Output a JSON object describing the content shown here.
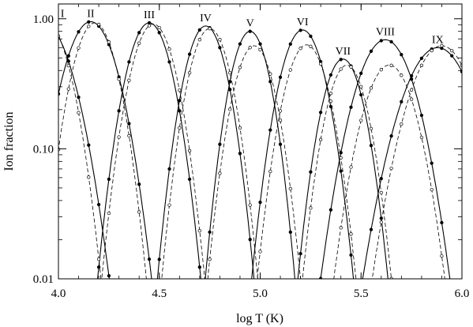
{
  "chart_data": {
    "type": "line",
    "xlabel": "log T (K)",
    "ylabel": "Ion fraction",
    "xlim": [
      4.0,
      6.0
    ],
    "ylim": [
      0.01,
      1.3
    ],
    "yscale": "log",
    "grid": false,
    "x_ticks": [
      {
        "value": 4.0,
        "label": "4.0"
      },
      {
        "value": 4.5,
        "label": "4.5"
      },
      {
        "value": 5.0,
        "label": "5.0"
      },
      {
        "value": 5.5,
        "label": "5.5"
      },
      {
        "value": 6.0,
        "label": "6.0"
      }
    ],
    "y_ticks": [
      {
        "value": 0.01,
        "label": "0.01"
      },
      {
        "value": 0.1,
        "label": "0.10"
      },
      {
        "value": 1.0,
        "label": "1.00"
      }
    ],
    "stroke_color": "#000000",
    "series": [
      {
        "name": "I",
        "peak_logT": 3.92,
        "peak_solid": 0.95,
        "sigma_solid": 0.11,
        "peak_dashed": 0.92,
        "sigma_dashed": 0.09
      },
      {
        "name": "II",
        "peak_logT": 4.16,
        "peak_solid": 0.95,
        "sigma_solid": 0.1,
        "peak_dashed": 0.93,
        "sigma_dashed": 0.085
      },
      {
        "name": "III",
        "peak_logT": 4.45,
        "peak_solid": 0.93,
        "sigma_solid": 0.085,
        "peak_dashed": 0.91,
        "sigma_dashed": 0.085
      },
      {
        "name": "IV",
        "peak_logT": 4.73,
        "peak_solid": 0.88,
        "sigma_solid": 0.08,
        "peak_dashed": 0.84,
        "sigma_dashed": 0.08
      },
      {
        "name": "V",
        "peak_logT": 4.95,
        "peak_solid": 0.8,
        "sigma_solid": 0.075,
        "peak_dashed": 0.62,
        "sigma_dashed": 0.08
      },
      {
        "name": "VI",
        "peak_logT": 5.21,
        "peak_solid": 0.82,
        "sigma_solid": 0.085,
        "peak_dashed": 0.63,
        "sigma_dashed": 0.085
      },
      {
        "name": "VII",
        "peak_logT": 5.41,
        "peak_solid": 0.49,
        "sigma_solid": 0.08,
        "peak_dashed": 0.44,
        "sigma_dashed": 0.08
      },
      {
        "name": "VIII",
        "peak_logT": 5.62,
        "peak_solid": 0.69,
        "sigma_solid": 0.11,
        "peak_dashed": 0.44,
        "sigma_dashed": 0.1
      },
      {
        "name": "IX",
        "peak_logT": 5.88,
        "peak_solid": 0.6,
        "sigma_solid": 0.13,
        "peak_dashed": 0.62,
        "sigma_dashed": 0.12
      }
    ]
  }
}
